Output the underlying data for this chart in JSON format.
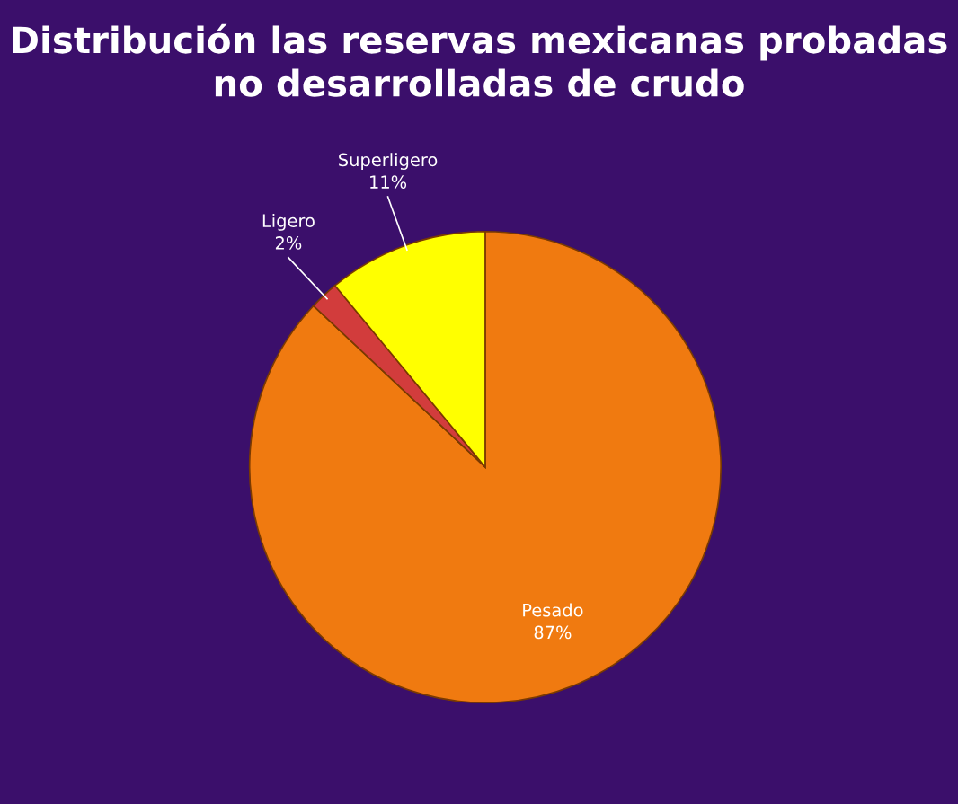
{
  "chart_data": {
    "type": "pie",
    "title": "Distribución las reservas mexicanas probadas no desarrolladas de crudo",
    "categories": [
      "Pesado",
      "Ligero",
      "Superligero"
    ],
    "values": [
      87,
      2,
      11
    ],
    "colors": [
      "#f07a10",
      "#d23c3c",
      "#ffff00"
    ],
    "value_labels": [
      "87%",
      "2%",
      "11%"
    ],
    "legend": false
  }
}
